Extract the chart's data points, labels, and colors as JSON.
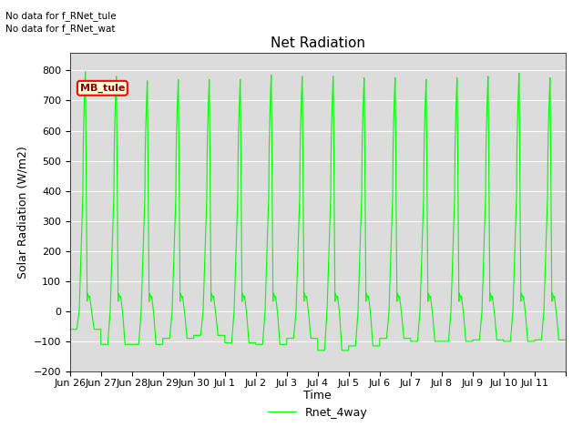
{
  "title": "Net Radiation",
  "ylabel": "Solar Radiation (W/m2)",
  "xlabel": "Time",
  "annotations": [
    "No data for f_RNet_tule",
    "No data for f_RNet_wat"
  ],
  "annotation_label": "MB_tule",
  "ylim": [
    -200,
    860
  ],
  "yticks": [
    -200,
    -100,
    0,
    100,
    200,
    300,
    400,
    500,
    600,
    700,
    800
  ],
  "line_color": "#00FF00",
  "line_label": "Rnet_4way",
  "background_color": "#DCDCDC",
  "figure_background": "#FFFFFF",
  "num_days": 16,
  "peak_value": 780,
  "trough_value": -100,
  "x_tick_labels": [
    "Jun 26",
    "Jun 27",
    "Jun 28",
    "Jun 29",
    "Jun 30",
    "Jul 1",
    "Jul 2",
    "Jul 3",
    "Jul 4",
    "Jul 5",
    "Jul 6",
    "Jul 7",
    "Jul 8",
    "Jul 9",
    "Jul 10",
    "Jul 11"
  ],
  "title_fontsize": 11,
  "label_fontsize": 9,
  "tick_fontsize": 8
}
